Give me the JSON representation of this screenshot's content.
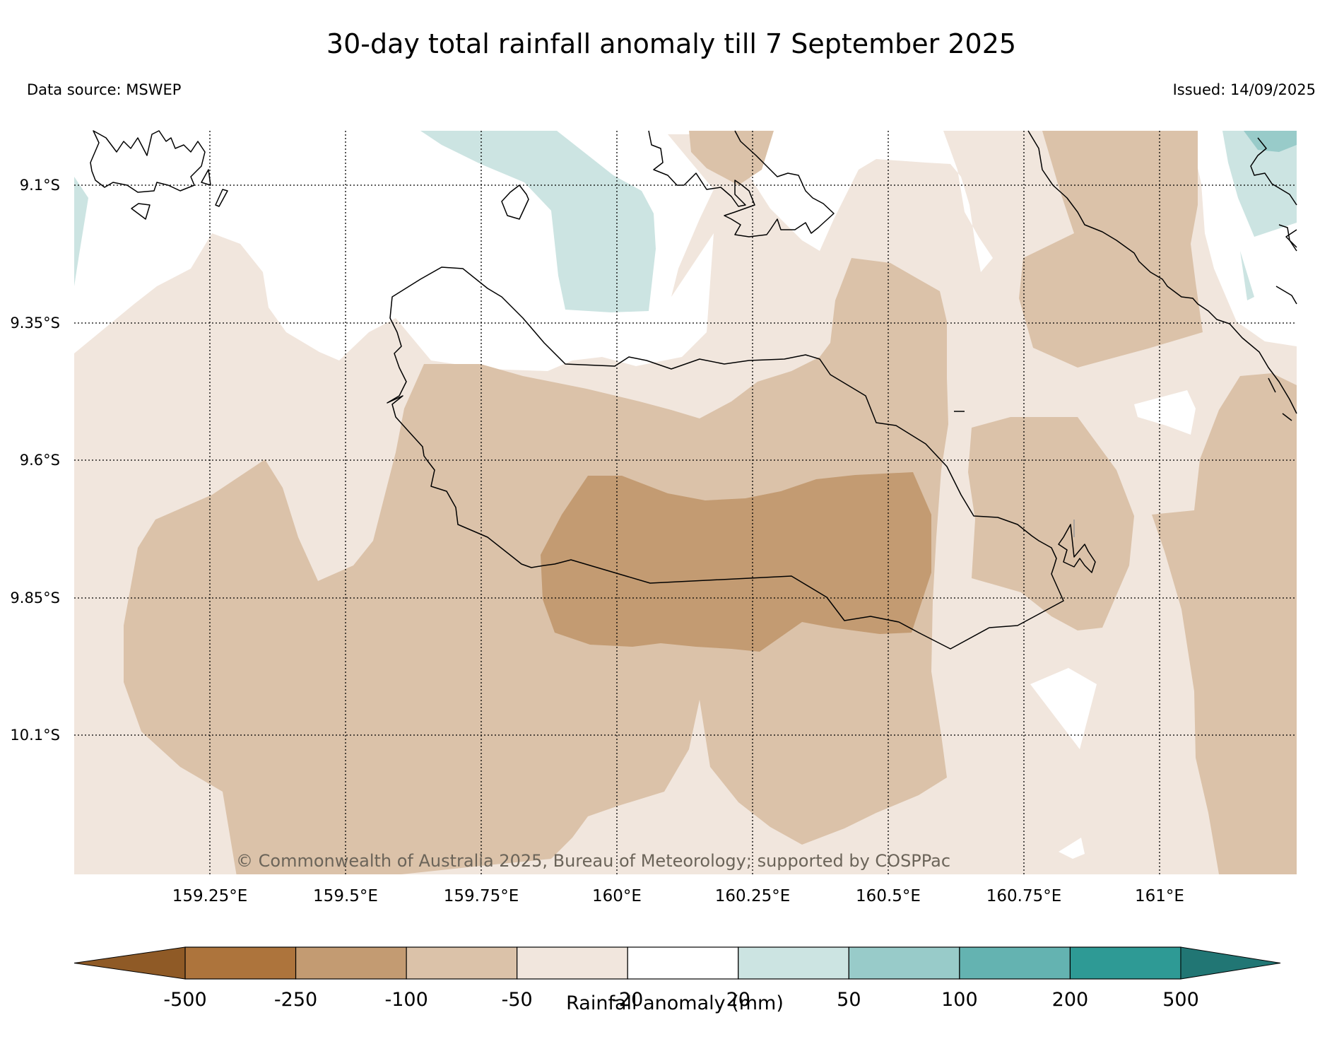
{
  "title": "30-day total rainfall anomaly till 7 September 2025",
  "data_source": "Data source: MSWEP",
  "issued": "Issued: 14/09/2025",
  "copyright": "© Commonwealth of Australia 2025, Bureau of Meteorology; supported by COSPPac",
  "lat_labels": [
    "9.1°S",
    "9.35°S",
    "9.6°S",
    "9.85°S",
    "10.1°S"
  ],
  "lon_labels": [
    "159.25°E",
    "159.5°E",
    "159.75°E",
    "160°E",
    "160.25°E",
    "160.5°E",
    "160.75°E",
    "161°E"
  ],
  "colorbar": {
    "label": "Rainfall anomaly (mm)",
    "ticks": [
      "-500",
      "-250",
      "-100",
      "-50",
      "-20",
      "20",
      "50",
      "100",
      "200",
      "500"
    ],
    "colors": [
      "#8f5a26",
      "#ad743c",
      "#c39b72",
      "#dbc2a9",
      "#f1e6dd",
      "#ffffff",
      "#cce4e2",
      "#98cbc9",
      "#64b3b1",
      "#2e9a95",
      "#217674"
    ]
  }
}
